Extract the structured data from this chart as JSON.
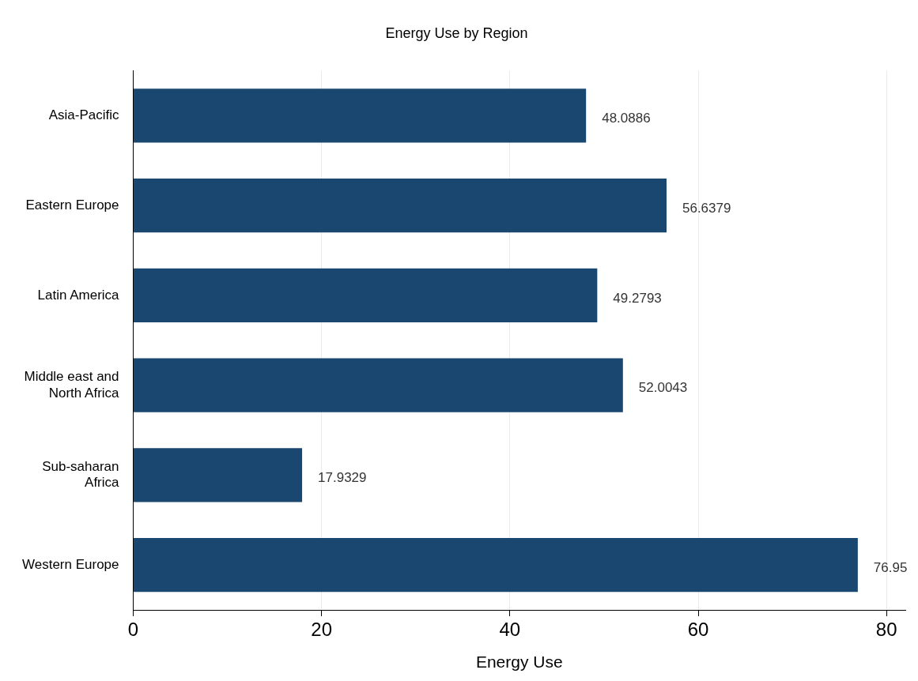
{
  "chart_data": {
    "type": "bar",
    "orientation": "horizontal",
    "title": "Energy Use by Region",
    "xlabel": "Energy Use",
    "categories": [
      "Asia-Pacific",
      "Eastern Europe",
      "Latin America",
      "Middle east and North Africa",
      "Sub-saharan Africa",
      "Western Europe"
    ],
    "values": [
      48.0886,
      56.6379,
      49.2793,
      52.0043,
      17.9329,
      76.95
    ],
    "color": "#1a476f",
    "xlim": [
      0,
      82
    ],
    "xticks": [
      0,
      20,
      40,
      60,
      80
    ],
    "grid": "x",
    "legend": false,
    "data_labels": true
  }
}
